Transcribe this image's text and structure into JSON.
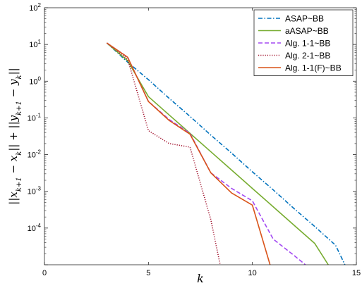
{
  "chart_data": {
    "type": "line",
    "xlabel": "k",
    "ylabel": "||x_{k+1} − x_k|| + ||y_{k+1} − y_k||",
    "ylabel_parts": [
      "||x",
      "k+1",
      " − x",
      "k",
      "|| + ||y",
      "k+1",
      " − y",
      "k",
      "||"
    ],
    "xlim": [
      0,
      15
    ],
    "ylim_log10": [
      -5,
      2
    ],
    "y_scale": "log",
    "grid": false,
    "legend_position": "top-right",
    "x_ticks": [
      0,
      5,
      10,
      15
    ],
    "y_tick_base": "10",
    "y_tick_exponents": [
      "2",
      "1",
      "0",
      "-1",
      "-2",
      "-3",
      "-4"
    ],
    "series": [
      {
        "name": "ASAP~BB",
        "color": "#0072BD",
        "dash": "dashdot",
        "x": [
          3,
          4,
          5,
          6,
          7,
          8,
          9,
          10,
          11,
          12,
          13,
          14,
          14.45
        ],
        "y": [
          11,
          3.3,
          1.1,
          0.34,
          0.11,
          0.034,
          0.011,
          0.0034,
          0.0011,
          0.00034,
          0.00011,
          3.4e-05,
          1e-05
        ]
      },
      {
        "name": "aASAP~BB",
        "color": "#77AC30",
        "dash": "solid",
        "x": [
          3,
          4,
          5,
          6,
          7,
          8,
          9,
          10,
          11,
          12,
          13,
          13.65
        ],
        "y": [
          11,
          3.6,
          0.38,
          0.12,
          0.038,
          0.012,
          0.0038,
          0.0012,
          0.00038,
          0.00012,
          3.8e-05,
          1e-05
        ]
      },
      {
        "name": "Alg. 1-1~BB",
        "color": "#A349F2",
        "dash": "dashed",
        "x": [
          3,
          4,
          5,
          6,
          7,
          8,
          9,
          10,
          11,
          12,
          12.55
        ],
        "y": [
          11,
          4.5,
          0.28,
          0.09,
          0.038,
          0.0032,
          0.0012,
          0.00055,
          5e-05,
          1.8e-05,
          1e-05
        ]
      },
      {
        "name": "Alg. 2-1~BB",
        "color": "#A2142F",
        "dash": "dotted",
        "x": [
          3,
          4,
          5,
          6,
          7,
          8,
          8.45
        ],
        "y": [
          11,
          4,
          0.045,
          0.02,
          0.016,
          0.00017,
          1e-05
        ]
      },
      {
        "name": "Alg. 1-1(F)~BB",
        "color": "#D95319",
        "dash": "solid",
        "x": [
          3,
          4,
          5,
          6,
          7,
          8,
          9,
          10,
          10.85
        ],
        "y": [
          11,
          4.5,
          0.28,
          0.085,
          0.036,
          0.0032,
          0.0009,
          0.00042,
          1e-05
        ]
      }
    ]
  }
}
